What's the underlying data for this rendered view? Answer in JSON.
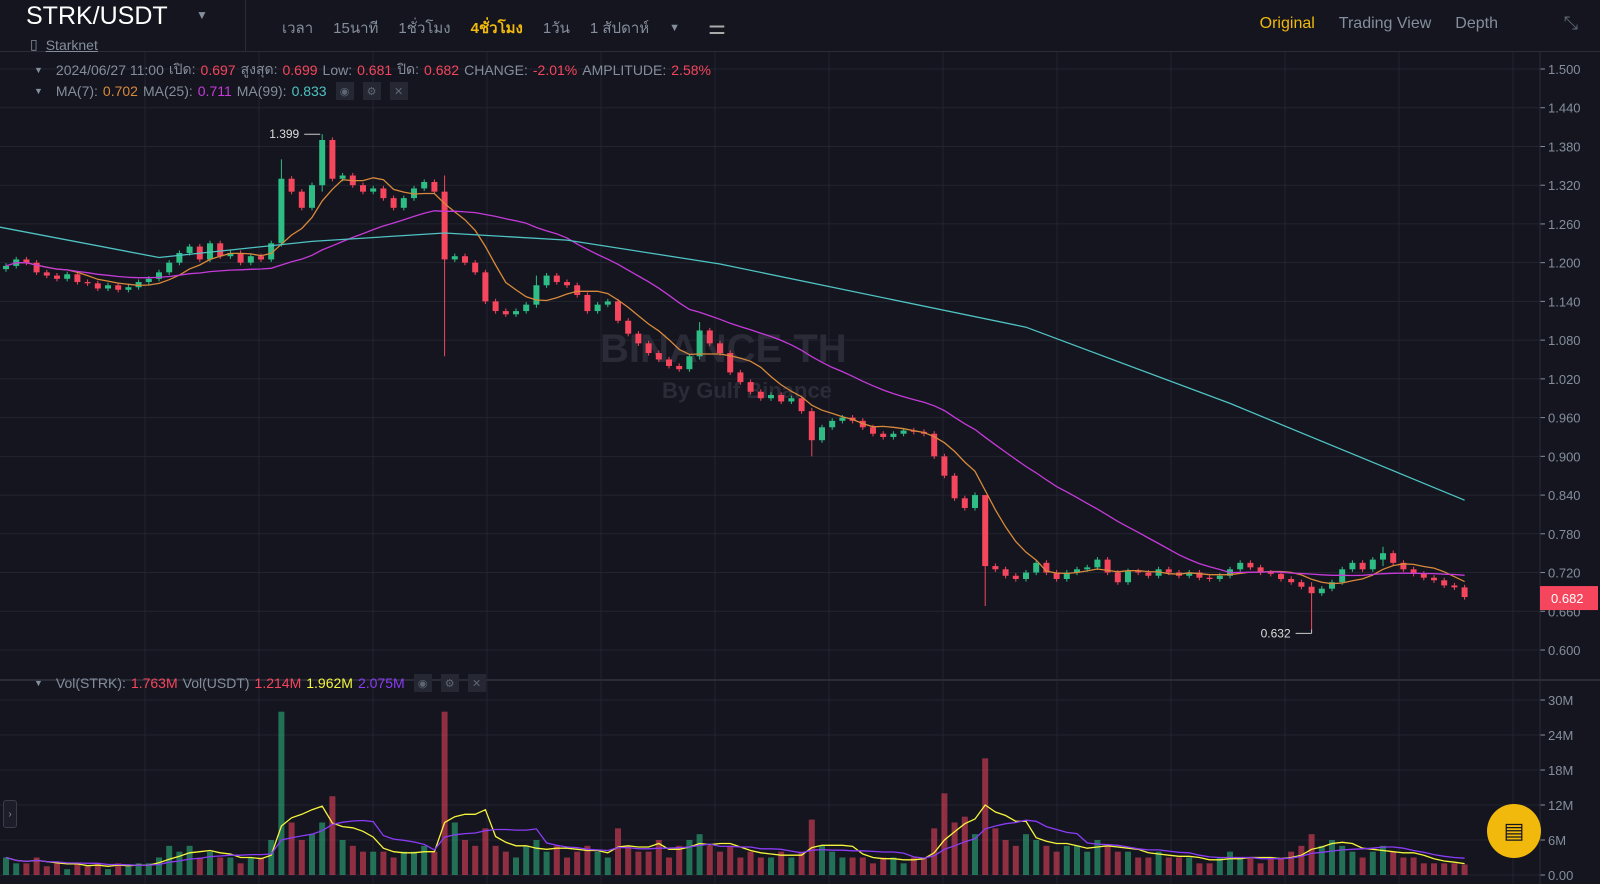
{
  "header": {
    "pair": "STRK/USDT",
    "project": "Starknet",
    "intervals": [
      {
        "label": "เวลา"
      },
      {
        "label": "15นาที"
      },
      {
        "label": "1ชั่วโมง"
      },
      {
        "label": "4ชั่วโมง",
        "active": true
      },
      {
        "label": "1วัน"
      },
      {
        "label": "1 สัปดาห์"
      }
    ],
    "views": [
      {
        "label": "Original",
        "active": true
      },
      {
        "label": "Trading View"
      },
      {
        "label": "Depth"
      }
    ]
  },
  "ohlc_legend": {
    "datetime": "2024/06/27 11:00",
    "open_label": "เปิด:",
    "open": "0.697",
    "high_label": "สูงสุด:",
    "high": "0.699",
    "low_label": "Low:",
    "low": "0.681",
    "close_label": "ปิด:",
    "close": "0.682",
    "change_label": "CHANGE:",
    "change": "-2.01%",
    "amp_label": "AMPLITUDE:",
    "amp": "2.58%"
  },
  "ma_legend": {
    "ma7_label": "MA(7):",
    "ma7": "0.702",
    "ma25_label": "MA(25):",
    "ma25": "0.711",
    "ma99_label": "MA(99):",
    "ma99": "0.833"
  },
  "vol_legend": {
    "strk_label": "Vol(STRK):",
    "strk": "1.763M",
    "usdt_label": "Vol(USDT)",
    "usdt": "1.214M",
    "ma1": "1.962M",
    "ma2": "2.075M"
  },
  "watermark": {
    "brand": "BINANCE TH",
    "sub": "By Gulf Binance"
  },
  "colors": {
    "up": "#2ebd85",
    "down": "#f6465d",
    "ma7": "#d8893b",
    "ma25": "#c53ad9",
    "ma99": "#4fc3c3",
    "vol_ma1": "#f5f53c",
    "vol_ma2": "#8a3cf6",
    "accent": "#f0b90b"
  },
  "chart_data": {
    "type": "candlestick",
    "price_ticks": [
      "1.500",
      "1.440",
      "1.380",
      "1.320",
      "1.260",
      "1.200",
      "1.140",
      "1.080",
      "1.020",
      "0.960",
      "0.900",
      "0.840",
      "0.780",
      "0.720",
      "0.660",
      "0.600"
    ],
    "ylim": [
      0.6,
      1.5
    ],
    "volume_ticks": [
      "30M",
      "24M",
      "18M",
      "12M",
      "6M",
      "0.00"
    ],
    "vol_ylim": [
      0,
      30
    ],
    "last_price": "0.682",
    "max_label": "1.399",
    "min_label": "0.632",
    "first_open": 1.19,
    "close": [
      1.195,
      1.205,
      1.2,
      1.185,
      1.18,
      1.175,
      1.182,
      1.17,
      1.168,
      1.16,
      1.165,
      1.158,
      1.162,
      1.17,
      1.175,
      1.185,
      1.2,
      1.215,
      1.225,
      1.205,
      1.23,
      1.21,
      1.215,
      1.2,
      1.21,
      1.205,
      1.23,
      1.33,
      1.31,
      1.285,
      1.32,
      1.39,
      1.33,
      1.335,
      1.32,
      1.31,
      1.315,
      1.3,
      1.285,
      1.3,
      1.315,
      1.325,
      1.31,
      1.205,
      1.21,
      1.2,
      1.185,
      1.14,
      1.125,
      1.12,
      1.125,
      1.135,
      1.165,
      1.18,
      1.17,
      1.165,
      1.15,
      1.125,
      1.135,
      1.14,
      1.11,
      1.09,
      1.075,
      1.06,
      1.05,
      1.04,
      1.035,
      1.055,
      1.095,
      1.075,
      1.06,
      1.03,
      1.015,
      1.0,
      0.99,
      0.995,
      0.985,
      0.99,
      0.97,
      0.925,
      0.945,
      0.955,
      0.96,
      0.955,
      0.945,
      0.935,
      0.93,
      0.935,
      0.94,
      0.938,
      0.935,
      0.9,
      0.87,
      0.835,
      0.82,
      0.84,
      0.73,
      0.725,
      0.715,
      0.71,
      0.72,
      0.735,
      0.72,
      0.71,
      0.72,
      0.725,
      0.728,
      0.74,
      0.72,
      0.705,
      0.722,
      0.72,
      0.715,
      0.725,
      0.72,
      0.715,
      0.72,
      0.712,
      0.71,
      0.715,
      0.725,
      0.735,
      0.728,
      0.72,
      0.718,
      0.71,
      0.705,
      0.698,
      0.688,
      0.695,
      0.705,
      0.725,
      0.735,
      0.725,
      0.74,
      0.75,
      0.735,
      0.725,
      0.718,
      0.712,
      0.708,
      0.7,
      0.697,
      0.682
    ],
    "wick_overrides": {
      "27": [
        1.36,
        1.225
      ],
      "31": [
        1.399,
        1.31
      ],
      "43": [
        1.335,
        1.055
      ],
      "52": [
        1.18,
        1.13
      ],
      "68": [
        1.108,
        1.05
      ],
      "79": [
        0.975,
        0.9
      ],
      "96": [
        0.84,
        0.668
      ],
      "128": [
        0.705,
        0.632
      ],
      "135": [
        0.76,
        0.73
      ]
    },
    "volume": [
      3,
      2,
      2,
      3,
      1.5,
      2,
      1,
      2,
      1.5,
      2,
      1,
      2,
      1.5,
      2,
      2,
      3,
      5,
      4,
      5,
      3,
      4,
      3,
      3,
      2,
      3,
      3,
      6,
      28,
      9,
      6,
      7,
      9,
      13.5,
      6,
      5,
      4,
      4,
      4,
      3,
      4,
      4,
      5,
      4,
      28,
      9,
      6,
      5,
      8,
      5,
      4,
      3,
      5,
      6,
      4,
      5,
      3,
      4,
      5,
      4,
      3,
      8,
      5,
      4,
      4,
      6,
      3,
      5,
      6,
      7,
      5,
      4,
      5,
      3,
      4,
      3,
      3,
      4,
      3,
      4,
      9.5,
      5,
      4,
      3,
      3,
      3,
      2,
      3,
      3,
      2,
      3,
      3,
      8,
      14,
      9,
      10,
      7,
      20,
      8,
      6,
      5,
      7,
      6,
      5,
      4,
      5,
      5,
      4,
      6,
      5,
      4,
      4,
      3,
      3,
      4,
      3,
      3,
      3,
      2,
      2,
      3,
      4,
      3,
      3,
      2,
      3,
      3,
      4,
      5,
      7,
      5,
      6,
      5,
      4,
      3,
      4,
      5,
      4,
      3,
      3,
      2,
      2,
      2,
      2,
      1.8
    ],
    "ma99_anchors": [
      [
        0,
        1.255
      ],
      [
        15,
        1.208
      ],
      [
        30,
        1.233
      ],
      [
        43,
        1.246
      ],
      [
        55,
        1.235
      ],
      [
        70,
        1.198
      ],
      [
        100,
        1.1
      ],
      [
        120,
        0.982
      ],
      [
        143,
        0.832
      ]
    ]
  }
}
